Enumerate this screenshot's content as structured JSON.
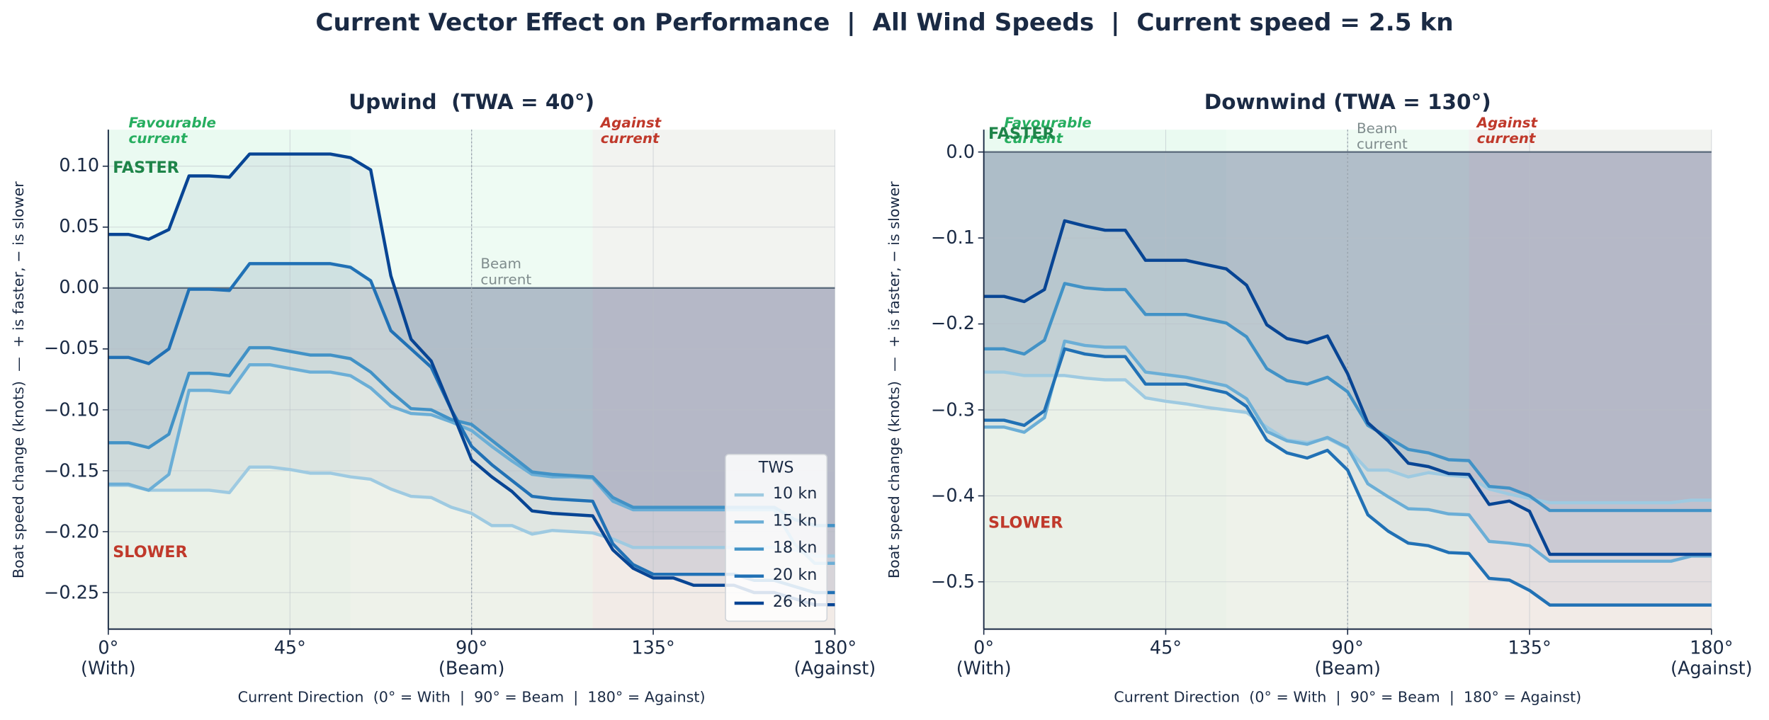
{
  "title": "Current Vector Effect on Performance  |  All Wind Speeds  |  Current speed = 2.5 kn",
  "chart_data": [
    {
      "type": "line",
      "title": "Upwind  (TWA = 40°)",
      "xlabel": "Current Direction  (0° = With  |  90° = Beam  |  180° = Against)",
      "ylabel": "Boat speed change (knots)  —  + is faster, − is slower",
      "x": [
        0,
        5,
        10,
        15,
        20,
        25,
        30,
        35,
        40,
        45,
        50,
        55,
        60,
        65,
        70,
        75,
        80,
        85,
        90,
        95,
        100,
        105,
        110,
        115,
        120,
        125,
        130,
        135,
        140,
        145,
        150,
        155,
        160,
        165,
        170,
        175,
        180
      ],
      "xlim": [
        0,
        180
      ],
      "xticks": [
        {
          "value": 0,
          "label": "0°\n(With)"
        },
        {
          "value": 45,
          "label": "45°"
        },
        {
          "value": 90,
          "label": "90°\n(Beam)"
        },
        {
          "value": 135,
          "label": "135°"
        },
        {
          "value": 180,
          "label": "180°\n(Against)"
        }
      ],
      "ylim": [
        -0.28,
        0.13
      ],
      "yticks": [
        {
          "value": 0.1,
          "label": "0.10"
        },
        0.05,
        {
          "value": 0,
          "label": "0.00"
        },
        {
          "value": -0.05,
          "label": "−0.05"
        },
        {
          "value": -0.1,
          "label": "−0.10"
        },
        {
          "value": -0.15,
          "label": "−0.15"
        },
        {
          "value": -0.2,
          "label": "−0.20"
        },
        {
          "value": -0.25,
          "label": "−0.25"
        }
      ],
      "grid": true,
      "zones": [
        {
          "label": "Favourable\ncurrent",
          "range": [
            0,
            60
          ],
          "color": "#27ae60",
          "shade": "#2ecc71"
        },
        {
          "label": "Beam\ncurrent",
          "range": [
            60,
            120
          ],
          "line": 90,
          "color": "#7f8c8d",
          "shade": "#58d68d"
        },
        {
          "label": "Against\ncurrent",
          "range": [
            120,
            180
          ],
          "color": "#c0392b",
          "shade": "#7d8a6f"
        }
      ],
      "annotations": {
        "faster": "FASTER",
        "slower": "SLOWER"
      },
      "legend": "lower right",
      "legend_title": "TWS",
      "series": [
        {
          "name": "10 kn",
          "color": "#9ecae1",
          "values": [
            -0.162,
            -0.162,
            -0.166,
            -0.166,
            -0.166,
            -0.166,
            -0.168,
            -0.147,
            -0.147,
            -0.149,
            -0.152,
            -0.152,
            -0.155,
            -0.157,
            -0.165,
            -0.171,
            -0.172,
            -0.18,
            -0.185,
            -0.195,
            -0.195,
            -0.202,
            -0.199,
            -0.2,
            -0.201,
            -0.206,
            -0.213,
            -0.213,
            -0.213,
            -0.213,
            -0.213,
            -0.213,
            -0.213,
            -0.213,
            -0.215,
            -0.22,
            -0.22
          ]
        },
        {
          "name": "15 kn",
          "color": "#6baed6",
          "values": [
            -0.161,
            -0.161,
            -0.166,
            -0.153,
            -0.084,
            -0.084,
            -0.086,
            -0.063,
            -0.063,
            -0.066,
            -0.069,
            -0.069,
            -0.072,
            -0.082,
            -0.097,
            -0.103,
            -0.104,
            -0.11,
            -0.117,
            -0.13,
            -0.142,
            -0.153,
            -0.155,
            -0.155,
            -0.156,
            -0.175,
            -0.182,
            -0.182,
            -0.182,
            -0.182,
            -0.182,
            -0.182,
            -0.182,
            -0.182,
            -0.21,
            -0.226,
            -0.226
          ]
        },
        {
          "name": "18 kn",
          "color": "#4292c6",
          "values": [
            -0.127,
            -0.127,
            -0.131,
            -0.12,
            -0.07,
            -0.07,
            -0.072,
            -0.049,
            -0.049,
            -0.052,
            -0.055,
            -0.055,
            -0.058,
            -0.069,
            -0.085,
            -0.099,
            -0.1,
            -0.108,
            -0.112,
            -0.125,
            -0.138,
            -0.151,
            -0.153,
            -0.154,
            -0.155,
            -0.172,
            -0.18,
            -0.18,
            -0.18,
            -0.18,
            -0.18,
            -0.18,
            -0.18,
            -0.18,
            -0.19,
            -0.195,
            -0.195
          ]
        },
        {
          "name": "20 kn",
          "color": "#2171b5",
          "values": [
            -0.057,
            -0.057,
            -0.062,
            -0.05,
            -0.001,
            -0.001,
            -0.002,
            0.02,
            0.02,
            0.02,
            0.02,
            0.02,
            0.017,
            0.006,
            -0.035,
            -0.05,
            -0.065,
            -0.1,
            -0.13,
            -0.145,
            -0.158,
            -0.171,
            -0.173,
            -0.174,
            -0.175,
            -0.21,
            -0.227,
            -0.235,
            -0.235,
            -0.235,
            -0.235,
            -0.235,
            -0.24,
            -0.24,
            -0.245,
            -0.25,
            -0.25
          ]
        },
        {
          "name": "26 kn",
          "color": "#084594",
          "values": [
            0.044,
            0.044,
            0.04,
            0.048,
            0.092,
            0.092,
            0.091,
            0.11,
            0.11,
            0.11,
            0.11,
            0.11,
            0.107,
            0.097,
            0.01,
            -0.042,
            -0.06,
            -0.1,
            -0.141,
            -0.155,
            -0.167,
            -0.183,
            -0.185,
            -0.186,
            -0.187,
            -0.215,
            -0.23,
            -0.238,
            -0.238,
            -0.244,
            -0.244,
            -0.244,
            -0.25,
            -0.25,
            -0.255,
            -0.26,
            -0.26
          ]
        }
      ]
    },
    {
      "type": "line",
      "title": "Downwind (TWA = 130°)",
      "xlabel": "Current Direction  (0° = With  |  90° = Beam  |  180° = Against)",
      "ylabel": "Boat speed change (knots)  —  + is faster, − is slower",
      "x": [
        0,
        5,
        10,
        15,
        20,
        25,
        30,
        35,
        40,
        45,
        50,
        55,
        60,
        65,
        70,
        75,
        80,
        85,
        90,
        95,
        100,
        105,
        110,
        115,
        120,
        125,
        130,
        135,
        140,
        145,
        150,
        155,
        160,
        165,
        170,
        175,
        180
      ],
      "xlim": [
        0,
        180
      ],
      "xticks": [
        {
          "value": 0,
          "label": "0°\n(With)"
        },
        {
          "value": 45,
          "label": "45°"
        },
        {
          "value": 90,
          "label": "90°\n(Beam)"
        },
        {
          "value": 135,
          "label": "135°"
        },
        {
          "value": 180,
          "label": "180°\n(Against)"
        }
      ],
      "ylim": [
        -0.555,
        0.026
      ],
      "yticks": [
        {
          "value": 0,
          "label": "0.0"
        },
        {
          "value": -0.1,
          "label": "−0.1"
        },
        {
          "value": -0.2,
          "label": "−0.2"
        },
        {
          "value": -0.3,
          "label": "−0.3"
        },
        {
          "value": -0.4,
          "label": "−0.4"
        },
        {
          "value": -0.5,
          "label": "−0.5"
        }
      ],
      "grid": true,
      "zones": [
        {
          "label": "Favourable\ncurrent",
          "range": [
            0,
            60
          ],
          "color": "#27ae60",
          "shade": "#2ecc71"
        },
        {
          "label": "Beam\ncurrent",
          "range": [
            60,
            120
          ],
          "line": 90,
          "color": "#7f8c8d",
          "shade": "#58d68d"
        },
        {
          "label": "Against\ncurrent",
          "range": [
            120,
            180
          ],
          "color": "#c0392b",
          "shade": "#7d8a6f"
        }
      ],
      "annotations": {
        "faster": "FASTER",
        "slower": "SLOWER"
      },
      "series": [
        {
          "name": "10 kn",
          "color": "#9ecae1",
          "values": [
            -0.256,
            -0.256,
            -0.26,
            -0.26,
            -0.26,
            -0.263,
            -0.265,
            -0.265,
            -0.286,
            -0.29,
            -0.293,
            -0.297,
            -0.3,
            -0.303,
            -0.32,
            -0.335,
            -0.338,
            -0.333,
            -0.345,
            -0.37,
            -0.37,
            -0.378,
            -0.373,
            -0.376,
            -0.378,
            -0.392,
            -0.398,
            -0.403,
            -0.408,
            -0.408,
            -0.408,
            -0.408,
            -0.408,
            -0.408,
            -0.408,
            -0.405,
            -0.405
          ]
        },
        {
          "name": "15 kn",
          "color": "#6baed6",
          "values": [
            -0.32,
            -0.32,
            -0.326,
            -0.309,
            -0.22,
            -0.225,
            -0.227,
            -0.227,
            -0.256,
            -0.259,
            -0.262,
            -0.267,
            -0.272,
            -0.287,
            -0.325,
            -0.336,
            -0.34,
            -0.332,
            -0.344,
            -0.386,
            -0.401,
            -0.415,
            -0.416,
            -0.421,
            -0.422,
            -0.453,
            -0.455,
            -0.458,
            -0.476,
            -0.476,
            -0.476,
            -0.476,
            -0.476,
            -0.476,
            -0.476,
            -0.47,
            -0.47
          ]
        },
        {
          "name": "18 kn",
          "color": "#4292c6",
          "values": [
            -0.229,
            -0.229,
            -0.235,
            -0.219,
            -0.153,
            -0.158,
            -0.16,
            -0.16,
            -0.189,
            -0.189,
            -0.189,
            -0.194,
            -0.199,
            -0.215,
            -0.252,
            -0.266,
            -0.27,
            -0.262,
            -0.279,
            -0.318,
            -0.332,
            -0.346,
            -0.35,
            -0.358,
            -0.359,
            -0.389,
            -0.391,
            -0.4,
            -0.417,
            -0.417,
            -0.417,
            -0.417,
            -0.417,
            -0.417,
            -0.417,
            -0.417,
            -0.417
          ]
        },
        {
          "name": "20 kn",
          "color": "#2171b5",
          "values": [
            -0.312,
            -0.312,
            -0.318,
            -0.301,
            -0.229,
            -0.235,
            -0.238,
            -0.238,
            -0.27,
            -0.27,
            -0.27,
            -0.275,
            -0.28,
            -0.296,
            -0.335,
            -0.35,
            -0.356,
            -0.347,
            -0.37,
            -0.422,
            -0.441,
            -0.455,
            -0.458,
            -0.466,
            -0.467,
            -0.496,
            -0.498,
            -0.51,
            -0.527,
            -0.527,
            -0.527,
            -0.527,
            -0.527,
            -0.527,
            -0.527,
            -0.527,
            -0.527
          ]
        },
        {
          "name": "26 kn",
          "color": "#084594",
          "values": [
            -0.168,
            -0.168,
            -0.174,
            -0.16,
            -0.08,
            -0.086,
            -0.091,
            -0.091,
            -0.126,
            -0.126,
            -0.126,
            -0.131,
            -0.136,
            -0.155,
            -0.201,
            -0.217,
            -0.222,
            -0.214,
            -0.258,
            -0.315,
            -0.336,
            -0.362,
            -0.366,
            -0.374,
            -0.375,
            -0.41,
            -0.406,
            -0.418,
            -0.468,
            -0.468,
            -0.468,
            -0.468,
            -0.468,
            -0.468,
            -0.468,
            -0.468,
            -0.468
          ]
        }
      ]
    }
  ]
}
